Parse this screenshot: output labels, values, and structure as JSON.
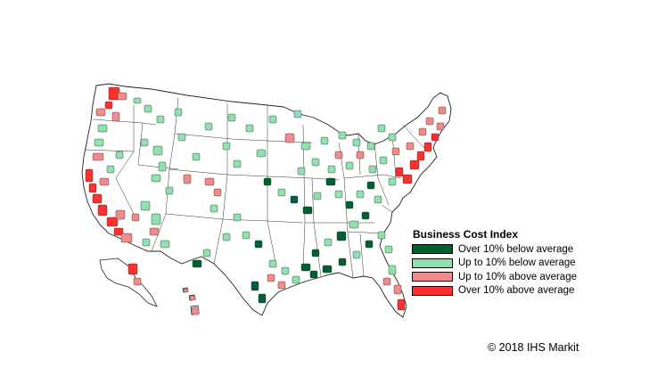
{
  "legend": {
    "title": "Business Cost Index",
    "items": [
      {
        "label": "Over 10% below average",
        "color": "#006030",
        "key": "dg"
      },
      {
        "label": "Up to 10% below average",
        "color": "#90E0B0",
        "key": "lg"
      },
      {
        "label": "Up to 10% above average",
        "color": "#F28C8C",
        "key": "lr"
      },
      {
        "label": "Over 10% above average",
        "color": "#FF3030",
        "key": "rr"
      }
    ]
  },
  "copyright": "© 2018 IHS Markit"
}
